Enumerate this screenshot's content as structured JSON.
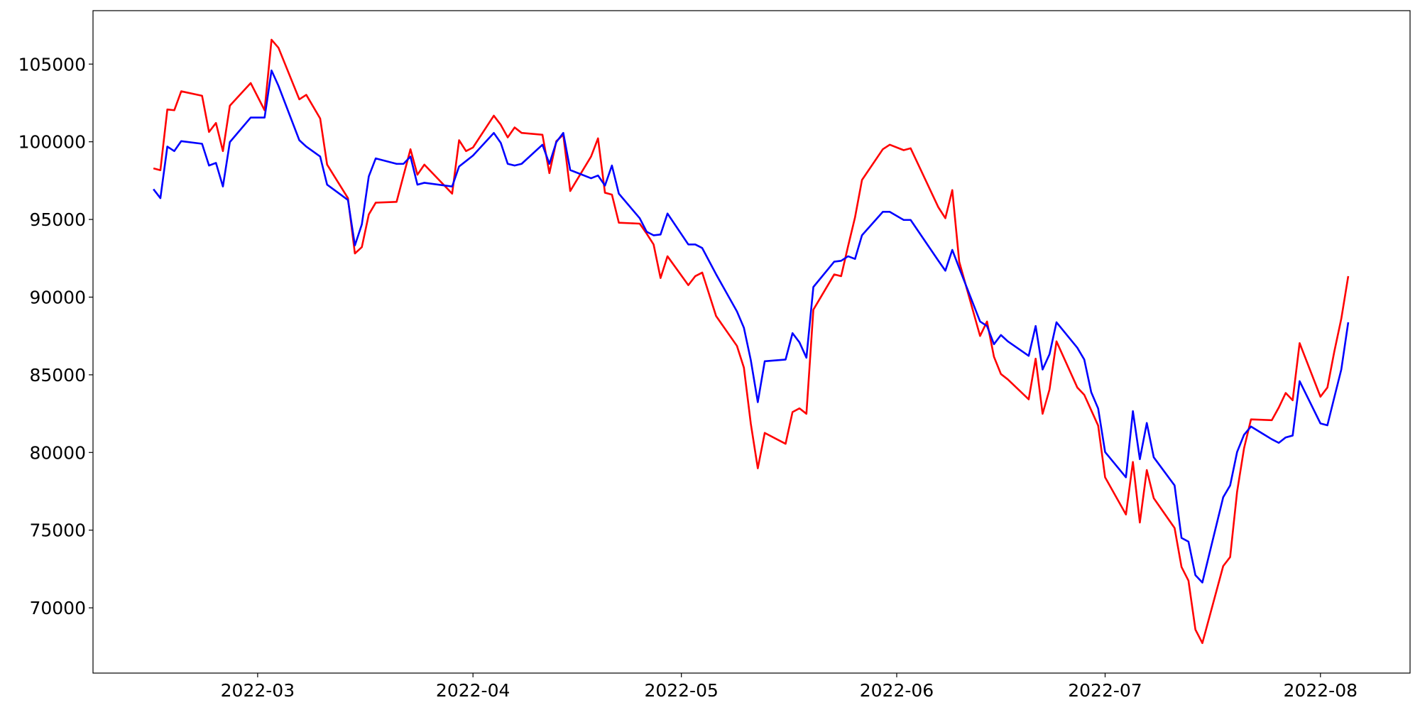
{
  "chart_data": {
    "type": "line",
    "x": [
      19037,
      19038,
      19039,
      19040,
      19041,
      19044,
      19045,
      19046,
      19047,
      19048,
      19051,
      19053,
      19054,
      19055,
      19058,
      19059,
      19061,
      19062,
      19065,
      19066,
      19067,
      19068,
      19069,
      19072,
      19073,
      19074,
      19075,
      19076,
      19080,
      19081,
      19082,
      19083,
      19086,
      19087,
      19088,
      19089,
      19090,
      19093,
      19094,
      19095,
      19096,
      19097,
      19100,
      19101,
      19102,
      19103,
      19104,
      19107,
      19108,
      19109,
      19110,
      19111,
      19114,
      19115,
      19116,
      19118,
      19121,
      19122,
      19123,
      19124,
      19125,
      19128,
      19129,
      19130,
      19131,
      19132,
      19135,
      19136,
      19137,
      19138,
      19139,
      19142,
      19143,
      19145,
      19146,
      19150,
      19151,
      19152,
      19153,
      19156,
      19157,
      19158,
      19159,
      19160,
      19163,
      19164,
      19165,
      19166,
      19167,
      19170,
      19171,
      19172,
      19173,
      19174,
      19177,
      19178,
      19179,
      19180,
      19181,
      19184,
      19185,
      19186,
      19187,
      19188,
      19191,
      19192,
      19193,
      19194,
      19195,
      19198,
      19199,
      19200,
      19201,
      19202,
      19205,
      19206,
      19207,
      19208,
      19209
    ],
    "series": [
      {
        "color": "#ff0000",
        "values": [
          98290,
          98170,
          102080,
          102030,
          103250,
          102960,
          100630,
          101210,
          99400,
          102320,
          103780,
          102030,
          106570,
          106050,
          102730,
          103020,
          101500,
          98530,
          96370,
          92810,
          93220,
          95320,
          96080,
          96130,
          97830,
          99520,
          97880,
          98530,
          96660,
          100100,
          99400,
          99630,
          101680,
          101090,
          100280,
          100920,
          100570,
          100450,
          97980,
          100040,
          100450,
          96830,
          99050,
          100220,
          96720,
          96600,
          94790,
          94730,
          94090,
          93390,
          91230,
          92630,
          90770,
          91350,
          91580,
          88780,
          86860,
          85460,
          81840,
          78980,
          81260,
          80560,
          82600,
          82840,
          82490,
          89190,
          91460,
          91350,
          93280,
          95140,
          97540,
          99520,
          99810,
          99460,
          99580,
          95780,
          95080,
          96890,
          92280,
          87500,
          88430,
          86160,
          85050,
          84700,
          83420,
          86040,
          82490,
          84060,
          87150,
          84180,
          83710,
          82720,
          81730,
          78400,
          76010,
          79390,
          75490,
          78870,
          77060,
          75140,
          72630,
          71750,
          68600,
          67730,
          72690,
          73270,
          77470,
          80270,
          82130,
          82080,
          82890,
          83830,
          83360,
          87040,
          83590,
          84180,
          86510,
          88610,
          91350
        ]
      },
      {
        "color": "#0000ff",
        "values": [
          96950,
          96370,
          99690,
          99400,
          100040,
          99870,
          98470,
          98640,
          97120,
          99980,
          101560,
          101560,
          104590,
          103600,
          100100,
          99690,
          99050,
          97240,
          96250,
          93330,
          94680,
          97770,
          98930,
          98580,
          98580,
          99050,
          97240,
          97360,
          97120,
          98410,
          98760,
          99110,
          100570,
          99930,
          98580,
          98470,
          98580,
          99810,
          98580,
          99980,
          100570,
          98180,
          97650,
          97830,
          97180,
          98470,
          96660,
          95080,
          94210,
          93980,
          94030,
          95380,
          93390,
          93390,
          93160,
          91470,
          89080,
          88030,
          85930,
          83240,
          85870,
          85980,
          87680,
          87090,
          86100,
          90650,
          92280,
          92340,
          92630,
          92460,
          93980,
          95490,
          95490,
          94970,
          94970,
          92340,
          91700,
          93040,
          91870,
          88430,
          88140,
          86970,
          87560,
          87150,
          86220,
          88140,
          85340,
          86330,
          88380,
          86740,
          85980,
          83880,
          82830,
          80030,
          78400,
          82660,
          79570,
          81900,
          79690,
          77880,
          74500,
          74260,
          72100,
          71630,
          77120,
          77880,
          80030,
          81140,
          81670,
          80850,
          80620,
          80970,
          81090,
          84590,
          81870,
          81750,
          83560,
          85340,
          88380
        ]
      }
    ],
    "xlim": [
      19028.3,
      19217.9
    ],
    "ylim": [
      65800,
      108440
    ],
    "xticks": [
      {
        "value": 19052,
        "label": "2022-03"
      },
      {
        "value": 19083,
        "label": "2022-04"
      },
      {
        "value": 19113,
        "label": "2022-05"
      },
      {
        "value": 19144,
        "label": "2022-06"
      },
      {
        "value": 19174,
        "label": "2022-07"
      },
      {
        "value": 19205,
        "label": "2022-08"
      }
    ],
    "yticks": [
      70000,
      75000,
      80000,
      85000,
      90000,
      95000,
      100000,
      105000
    ],
    "grid": false
  }
}
